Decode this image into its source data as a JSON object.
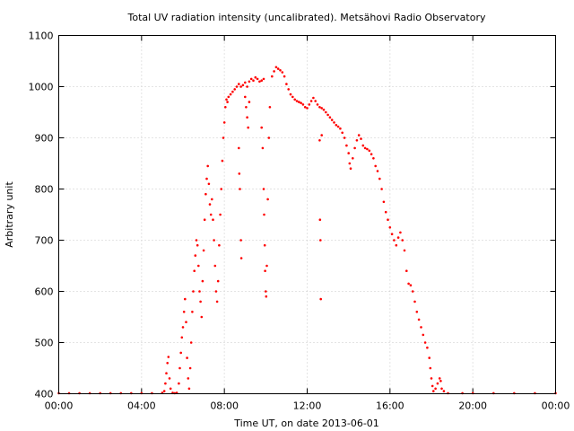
{
  "chart_data": {
    "type": "scatter",
    "title": "Total UV radiation intensity (uncalibrated). Metsähovi Radio Observatory",
    "xlabel": "Time UT, on date 2013-06-01",
    "ylabel": "Arbitrary unit",
    "xlim": [
      "00:00",
      "24:00"
    ],
    "ylim": [
      400,
      1100
    ],
    "xticks": [
      "00:00",
      "04:00",
      "08:00",
      "12:00",
      "16:00",
      "20:00",
      "00:00"
    ],
    "yticks": [
      400,
      500,
      600,
      700,
      800,
      900,
      1000,
      1100
    ],
    "grid": true,
    "marker_color": "#ff0000",
    "series": [
      {
        "x_unit": "hours UT",
        "points": [
          [
            0.0,
            401
          ],
          [
            0.5,
            401
          ],
          [
            1.0,
            401
          ],
          [
            1.5,
            401
          ],
          [
            2.0,
            401
          ],
          [
            2.5,
            401
          ],
          [
            3.0,
            401
          ],
          [
            3.5,
            401
          ],
          [
            4.0,
            401
          ],
          [
            4.5,
            401
          ],
          [
            5.0,
            402
          ],
          [
            5.1,
            405
          ],
          [
            5.15,
            420
          ],
          [
            5.2,
            440
          ],
          [
            5.25,
            460
          ],
          [
            5.3,
            472
          ],
          [
            5.35,
            430
          ],
          [
            5.4,
            410
          ],
          [
            5.5,
            402
          ],
          [
            5.6,
            401
          ],
          [
            5.7,
            402
          ],
          [
            5.8,
            420
          ],
          [
            5.85,
            450
          ],
          [
            5.9,
            480
          ],
          [
            5.95,
            510
          ],
          [
            6.0,
            530
          ],
          [
            6.05,
            560
          ],
          [
            6.1,
            585
          ],
          [
            6.15,
            540
          ],
          [
            6.2,
            470
          ],
          [
            6.25,
            430
          ],
          [
            6.3,
            410
          ],
          [
            6.35,
            450
          ],
          [
            6.4,
            500
          ],
          [
            6.45,
            560
          ],
          [
            6.5,
            600
          ],
          [
            6.55,
            640
          ],
          [
            6.6,
            670
          ],
          [
            6.65,
            700
          ],
          [
            6.7,
            690
          ],
          [
            6.75,
            650
          ],
          [
            6.8,
            600
          ],
          [
            6.85,
            580
          ],
          [
            6.9,
            550
          ],
          [
            6.95,
            620
          ],
          [
            7.0,
            680
          ],
          [
            7.05,
            740
          ],
          [
            7.1,
            790
          ],
          [
            7.15,
            820
          ],
          [
            7.2,
            845
          ],
          [
            7.25,
            810
          ],
          [
            7.3,
            770
          ],
          [
            7.35,
            750
          ],
          [
            7.4,
            780
          ],
          [
            7.45,
            740
          ],
          [
            7.5,
            700
          ],
          [
            7.55,
            650
          ],
          [
            7.6,
            600
          ],
          [
            7.65,
            580
          ],
          [
            7.7,
            620
          ],
          [
            7.75,
            690
          ],
          [
            7.8,
            750
          ],
          [
            7.85,
            800
          ],
          [
            7.9,
            855
          ],
          [
            7.95,
            900
          ],
          [
            8.0,
            930
          ],
          [
            8.05,
            960
          ],
          [
            8.1,
            975
          ],
          [
            8.15,
            970
          ],
          [
            8.2,
            980
          ],
          [
            8.3,
            985
          ],
          [
            8.4,
            990
          ],
          [
            8.5,
            995
          ],
          [
            8.6,
            1000
          ],
          [
            8.7,
            1005
          ],
          [
            8.8,
            1000
          ],
          [
            8.9,
            1003
          ],
          [
            9.0,
            1008
          ],
          [
            9.1,
            1000
          ],
          [
            9.2,
            1010
          ],
          [
            9.3,
            1015
          ],
          [
            9.4,
            1012
          ],
          [
            9.5,
            1018
          ],
          [
            9.6,
            1015
          ],
          [
            9.7,
            1010
          ],
          [
            9.8,
            1012
          ],
          [
            9.9,
            1015
          ],
          [
            8.7,
            880
          ],
          [
            8.72,
            830
          ],
          [
            8.75,
            800
          ],
          [
            8.8,
            700
          ],
          [
            8.82,
            665
          ],
          [
            9.0,
            980
          ],
          [
            9.05,
            960
          ],
          [
            9.1,
            940
          ],
          [
            9.15,
            920
          ],
          [
            9.2,
            970
          ],
          [
            9.8,
            920
          ],
          [
            9.85,
            880
          ],
          [
            9.9,
            800
          ],
          [
            9.92,
            750
          ],
          [
            9.95,
            690
          ],
          [
            9.97,
            640
          ],
          [
            10.0,
            600
          ],
          [
            10.02,
            590
          ],
          [
            10.05,
            650
          ],
          [
            10.1,
            780
          ],
          [
            10.15,
            900
          ],
          [
            10.2,
            960
          ],
          [
            10.3,
            1020
          ],
          [
            10.4,
            1030
          ],
          [
            10.5,
            1038
          ],
          [
            10.6,
            1035
          ],
          [
            10.7,
            1032
          ],
          [
            10.8,
            1028
          ],
          [
            10.9,
            1020
          ],
          [
            11.0,
            1005
          ],
          [
            11.1,
            995
          ],
          [
            11.2,
            985
          ],
          [
            11.3,
            980
          ],
          [
            11.4,
            975
          ],
          [
            11.5,
            972
          ],
          [
            11.6,
            970
          ],
          [
            11.7,
            968
          ],
          [
            11.8,
            965
          ],
          [
            11.9,
            960
          ],
          [
            12.0,
            958
          ],
          [
            12.1,
            965
          ],
          [
            12.2,
            972
          ],
          [
            12.3,
            978
          ],
          [
            12.4,
            972
          ],
          [
            12.5,
            965
          ],
          [
            12.6,
            960
          ],
          [
            12.7,
            958
          ],
          [
            12.8,
            955
          ],
          [
            12.9,
            950
          ],
          [
            13.0,
            945
          ],
          [
            13.1,
            940
          ],
          [
            13.2,
            935
          ],
          [
            13.3,
            930
          ],
          [
            13.4,
            925
          ],
          [
            13.5,
            922
          ],
          [
            13.6,
            918
          ],
          [
            13.7,
            910
          ],
          [
            13.8,
            900
          ],
          [
            13.9,
            885
          ],
          [
            14.0,
            870
          ],
          [
            14.05,
            850
          ],
          [
            14.1,
            840
          ],
          [
            14.2,
            860
          ],
          [
            14.3,
            880
          ],
          [
            14.4,
            895
          ],
          [
            14.5,
            905
          ],
          [
            14.6,
            898
          ],
          [
            14.7,
            885
          ],
          [
            14.8,
            880
          ],
          [
            14.9,
            878
          ],
          [
            15.0,
            875
          ],
          [
            15.1,
            868
          ],
          [
            15.2,
            860
          ],
          [
            15.3,
            845
          ],
          [
            15.4,
            835
          ],
          [
            15.5,
            820
          ],
          [
            15.6,
            800
          ],
          [
            15.7,
            775
          ],
          [
            15.8,
            755
          ],
          [
            15.9,
            740
          ],
          [
            16.0,
            725
          ],
          [
            16.1,
            712
          ],
          [
            16.2,
            700
          ],
          [
            16.3,
            690
          ],
          [
            16.4,
            705
          ],
          [
            16.5,
            715
          ],
          [
            16.6,
            700
          ],
          [
            16.7,
            680
          ],
          [
            16.8,
            640
          ],
          [
            16.9,
            615
          ],
          [
            17.0,
            612
          ],
          [
            17.1,
            600
          ],
          [
            17.2,
            580
          ],
          [
            17.3,
            560
          ],
          [
            17.4,
            545
          ],
          [
            17.5,
            530
          ],
          [
            17.6,
            515
          ],
          [
            17.7,
            500
          ],
          [
            17.8,
            490
          ],
          [
            17.9,
            470
          ],
          [
            17.95,
            450
          ],
          [
            18.0,
            430
          ],
          [
            18.05,
            415
          ],
          [
            18.1,
            405
          ],
          [
            18.2,
            410
          ],
          [
            18.3,
            420
          ],
          [
            18.4,
            430
          ],
          [
            18.45,
            425
          ],
          [
            18.5,
            410
          ],
          [
            18.6,
            405
          ],
          [
            12.6,
            895
          ],
          [
            12.62,
            740
          ],
          [
            12.64,
            700
          ],
          [
            12.66,
            585
          ],
          [
            12.7,
            905
          ],
          [
            18.8,
            401
          ],
          [
            19.5,
            401
          ],
          [
            20.0,
            401
          ],
          [
            21.0,
            401
          ],
          [
            22.0,
            401
          ],
          [
            23.0,
            401
          ],
          [
            24.0,
            401
          ]
        ]
      }
    ]
  }
}
